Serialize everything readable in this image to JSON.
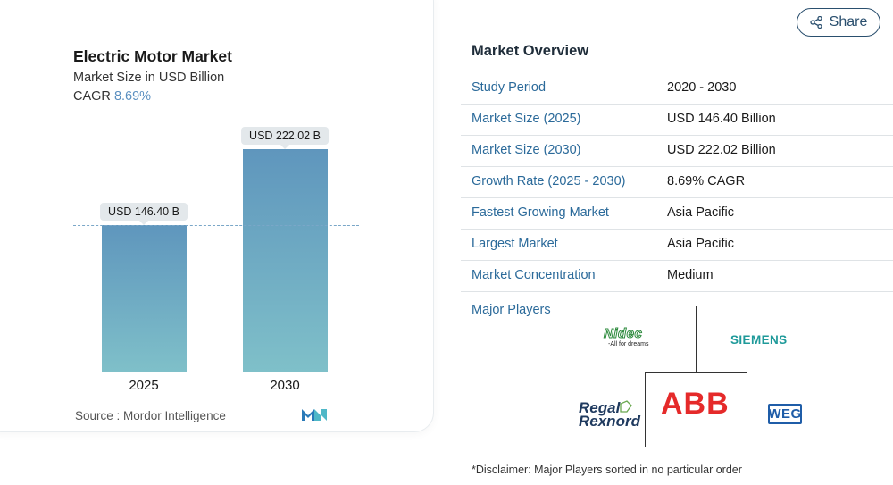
{
  "chart_data": {
    "type": "bar",
    "title": "Electric Motor Market",
    "subtitle": "Market Size in USD Billion",
    "cagr_label": "CAGR",
    "cagr_value": "8.69%",
    "categories": [
      "2025",
      "2030"
    ],
    "values": [
      146.4,
      222.02
    ],
    "data_labels": [
      "USD 146.40 B",
      "USD 222.02 B"
    ],
    "reference_line": 146.4,
    "ylim": [
      0,
      222.02
    ],
    "grid": false,
    "colors": {
      "bar_top": "#5f96bd",
      "bar_bottom": "#7fc0c9",
      "reference_line": "#7aa7c8"
    }
  },
  "source": "Source :  Mordor Intelligence",
  "share": {
    "label": "Share",
    "icon": "share-icon"
  },
  "overview": {
    "title": "Market Overview",
    "rows": [
      {
        "label": "Study Period",
        "value": "2020 - 2030"
      },
      {
        "label": "Market Size (2025)",
        "value": "USD 146.40 Billion"
      },
      {
        "label": "Market Size (2030)",
        "value": "USD 222.02 Billion"
      },
      {
        "label": "Growth Rate (2025 - 2030)",
        "value": "8.69% CAGR"
      },
      {
        "label": "Fastest Growing Market",
        "value": "Asia Pacific"
      },
      {
        "label": "Largest Market",
        "value": "Asia Pacific"
      },
      {
        "label": "Market Concentration",
        "value": "Medium"
      }
    ],
    "players_label": "Major Players",
    "players": [
      {
        "name": "Nidec",
        "tagline": "-All for dreams"
      },
      {
        "name": "SIEMENS"
      },
      {
        "name": "Regal Rexnord"
      },
      {
        "name": "ABB"
      },
      {
        "name": "WEG"
      }
    ],
    "disclaimer": "*Disclaimer: Major Players sorted in no particular order"
  }
}
